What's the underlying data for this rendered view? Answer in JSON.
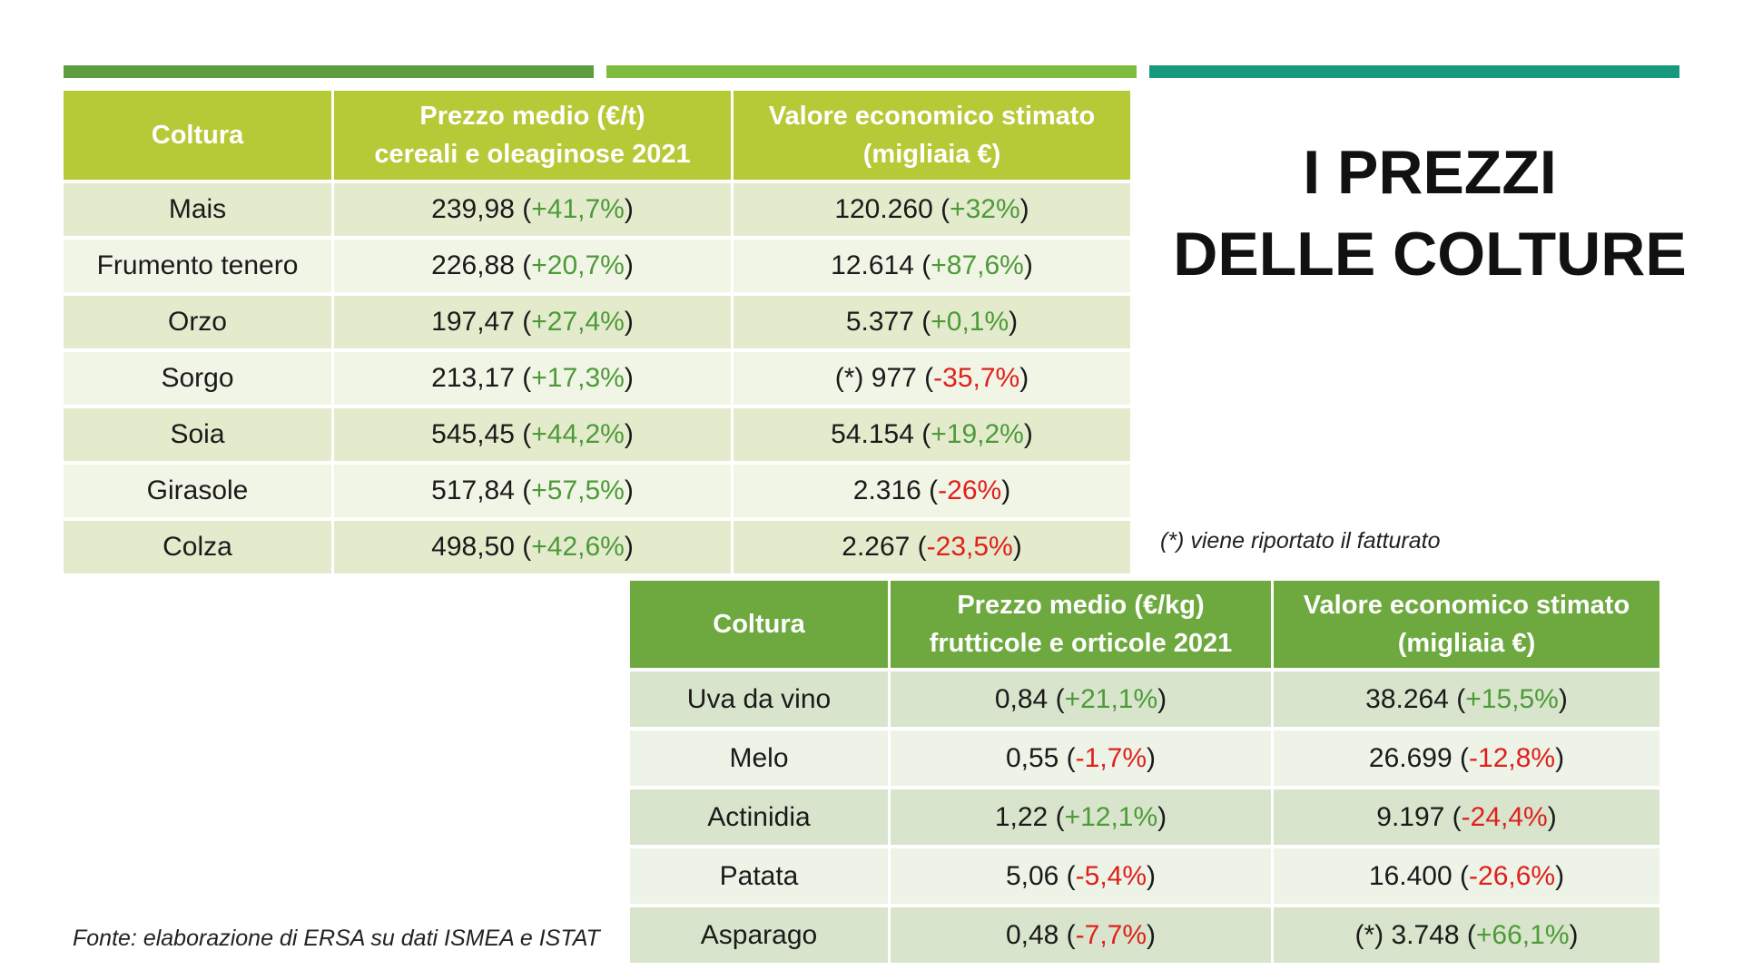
{
  "title": {
    "line1": "I PREZZI",
    "line2": "DELLE COLTURE"
  },
  "colors": {
    "positive": "#4d9a38",
    "negative": "#e0201b",
    "header1": "#b6c936",
    "header2": "#6ea93f"
  },
  "table1": {
    "headers": [
      {
        "line1": "Coltura",
        "line2": ""
      },
      {
        "line1": "Prezzo medio (€/t)",
        "line2": "cereali e oleaginose 2021"
      },
      {
        "line1": "Valore economico stimato",
        "line2": "(migliaia €)"
      }
    ],
    "rows": [
      {
        "crop": "Mais",
        "price": "239,98",
        "price_change": "+41,7%",
        "price_sign": "pos",
        "value_prefix": "",
        "value": "120.260",
        "value_change": "+32%",
        "value_sign": "pos"
      },
      {
        "crop": "Frumento tenero",
        "price": "226,88",
        "price_change": "+20,7%",
        "price_sign": "pos",
        "value_prefix": "",
        "value": "12.614",
        "value_change": "+87,6%",
        "value_sign": "pos"
      },
      {
        "crop": "Orzo",
        "price": "197,47",
        "price_change": "+27,4%",
        "price_sign": "pos",
        "value_prefix": "",
        "value": "5.377",
        "value_change": "+0,1%",
        "value_sign": "pos"
      },
      {
        "crop": "Sorgo",
        "price": "213,17",
        "price_change": "+17,3%",
        "price_sign": "pos",
        "value_prefix": "(*) ",
        "value": "977",
        "value_change": "-35,7%",
        "value_sign": "neg"
      },
      {
        "crop": "Soia",
        "price": "545,45",
        "price_change": "+44,2%",
        "price_sign": "pos",
        "value_prefix": "",
        "value": "54.154",
        "value_change": "+19,2%",
        "value_sign": "pos"
      },
      {
        "crop": "Girasole",
        "price": "517,84",
        "price_change": "+57,5%",
        "price_sign": "pos",
        "value_prefix": "",
        "value": "2.316",
        "value_change": "-26%",
        "value_sign": "neg"
      },
      {
        "crop": "Colza",
        "price": "498,50",
        "price_change": "+42,6%",
        "price_sign": "pos",
        "value_prefix": "",
        "value": "2.267",
        "value_change": "-23,5%",
        "value_sign": "neg"
      }
    ]
  },
  "table2": {
    "headers": [
      {
        "line1": "Coltura",
        "line2": ""
      },
      {
        "line1": "Prezzo medio (€/kg)",
        "line2": "frutticole e orticole 2021"
      },
      {
        "line1": "Valore economico stimato",
        "line2": "(migliaia €)"
      }
    ],
    "rows": [
      {
        "crop": "Uva da vino",
        "price": "0,84",
        "price_change": "+21,1%",
        "price_sign": "pos",
        "value_prefix": "",
        "value": "38.264",
        "value_change": "+15,5%",
        "value_sign": "pos"
      },
      {
        "crop": "Melo",
        "price": "0,55",
        "price_change": "-1,7%",
        "price_sign": "neg",
        "value_prefix": "",
        "value": "26.699",
        "value_change": "-12,8%",
        "value_sign": "neg"
      },
      {
        "crop": "Actinidia",
        "price": "1,22",
        "price_change": "+12,1%",
        "price_sign": "pos",
        "value_prefix": "",
        "value": "9.197",
        "value_change": "-24,4%",
        "value_sign": "neg"
      },
      {
        "crop": "Patata",
        "price": "5,06",
        "price_change": "-5,4%",
        "price_sign": "neg",
        "value_prefix": "",
        "value": "16.400",
        "value_change": "-26,6%",
        "value_sign": "neg"
      },
      {
        "crop": "Asparago",
        "price": "0,48",
        "price_change": "-7,7%",
        "price_sign": "neg",
        "value_prefix": "(*) ",
        "value": "3.748",
        "value_change": "+66,1%",
        "value_sign": "pos"
      }
    ]
  },
  "note": "(*) viene riportato il fatturato",
  "source": "Fonte: elaborazione di ERSA su dati ISMEA e ISTAT"
}
